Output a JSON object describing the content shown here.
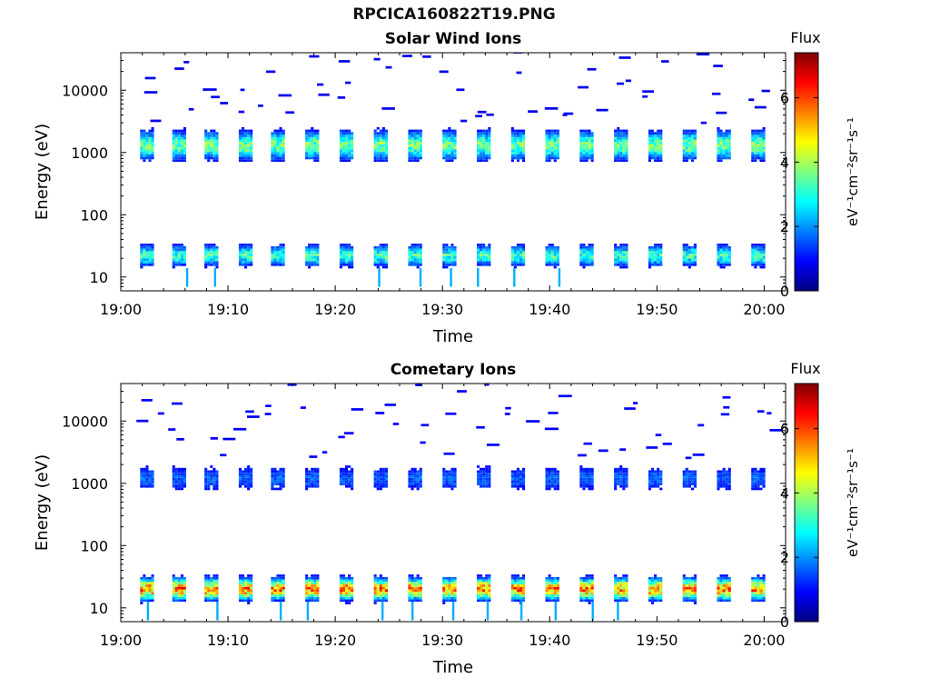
{
  "figure": {
    "title": "RPCICA160822T19.PNG",
    "colorscale": [
      "#00007f",
      "#0000ff",
      "#007fff",
      "#00ffff",
      "#7fff7f",
      "#ffff00",
      "#ff7f00",
      "#ff0000",
      "#7f0000"
    ]
  },
  "chart_data": [
    {
      "type": "heatmap",
      "title": "Solar Wind Ions",
      "xlabel": "Time",
      "ylabel": "Energy (eV)",
      "xlim": [
        "19:00",
        "20:02"
      ],
      "xticks": [
        "19:00",
        "19:10",
        "19:20",
        "19:30",
        "19:40",
        "19:50",
        "20:00"
      ],
      "ylim": [
        6,
        40000
      ],
      "yscale": "log",
      "yticks": [
        "10",
        "100",
        "1000",
        "10000"
      ],
      "colorbar": {
        "label": "Flux",
        "units": "eV⁻¹cm⁻²sr⁻¹s⁻¹",
        "range": [
          0,
          7.4
        ],
        "ticks": [
          "0",
          "2",
          "4",
          "6"
        ]
      },
      "pattern": {
        "sweep_start_minutes": [
          1.8,
          4.8,
          7.8,
          11.0,
          14.0,
          17.2,
          20.4,
          23.6,
          26.8,
          30.0,
          33.2,
          36.4,
          39.6,
          42.8,
          46.0,
          49.2,
          52.4,
          55.6,
          58.8
        ],
        "sweep_length_minutes": 1.3,
        "core": {
          "energy_center_eV": 1300,
          "flux": 3.5
        },
        "low_band": {
          "energy_center_eV": 22,
          "flux": 3.3
        },
        "sparse_high_energy_flux": 0.8
      }
    },
    {
      "type": "heatmap",
      "title": "Cometary Ions",
      "xlabel": "Time",
      "ylabel": "Energy (eV)",
      "xlim": [
        "19:00",
        "20:02"
      ],
      "xticks": [
        "19:00",
        "19:10",
        "19:20",
        "19:30",
        "19:40",
        "19:50",
        "20:00"
      ],
      "ylim": [
        6,
        40000
      ],
      "yscale": "log",
      "yticks": [
        "10",
        "100",
        "1000",
        "10000"
      ],
      "colorbar": {
        "label": "Flux",
        "units": "eV⁻¹cm⁻²sr⁻¹s⁻¹",
        "range": [
          0,
          7.4
        ],
        "ticks": [
          "0",
          "2",
          "4",
          "6"
        ]
      },
      "pattern": {
        "sweep_start_minutes": [
          1.8,
          4.8,
          7.8,
          11.0,
          14.0,
          17.2,
          20.4,
          23.6,
          26.8,
          30.0,
          33.2,
          36.4,
          39.6,
          42.8,
          46.0,
          49.2,
          52.4,
          55.6,
          58.8
        ],
        "sweep_length_minutes": 1.3,
        "core": {
          "energy_center_eV": 1200,
          "flux": 1.6
        },
        "low_band": {
          "energy_center_eV": 20,
          "flux": 5.6
        },
        "sparse_high_energy_flux": 0.9
      }
    }
  ]
}
